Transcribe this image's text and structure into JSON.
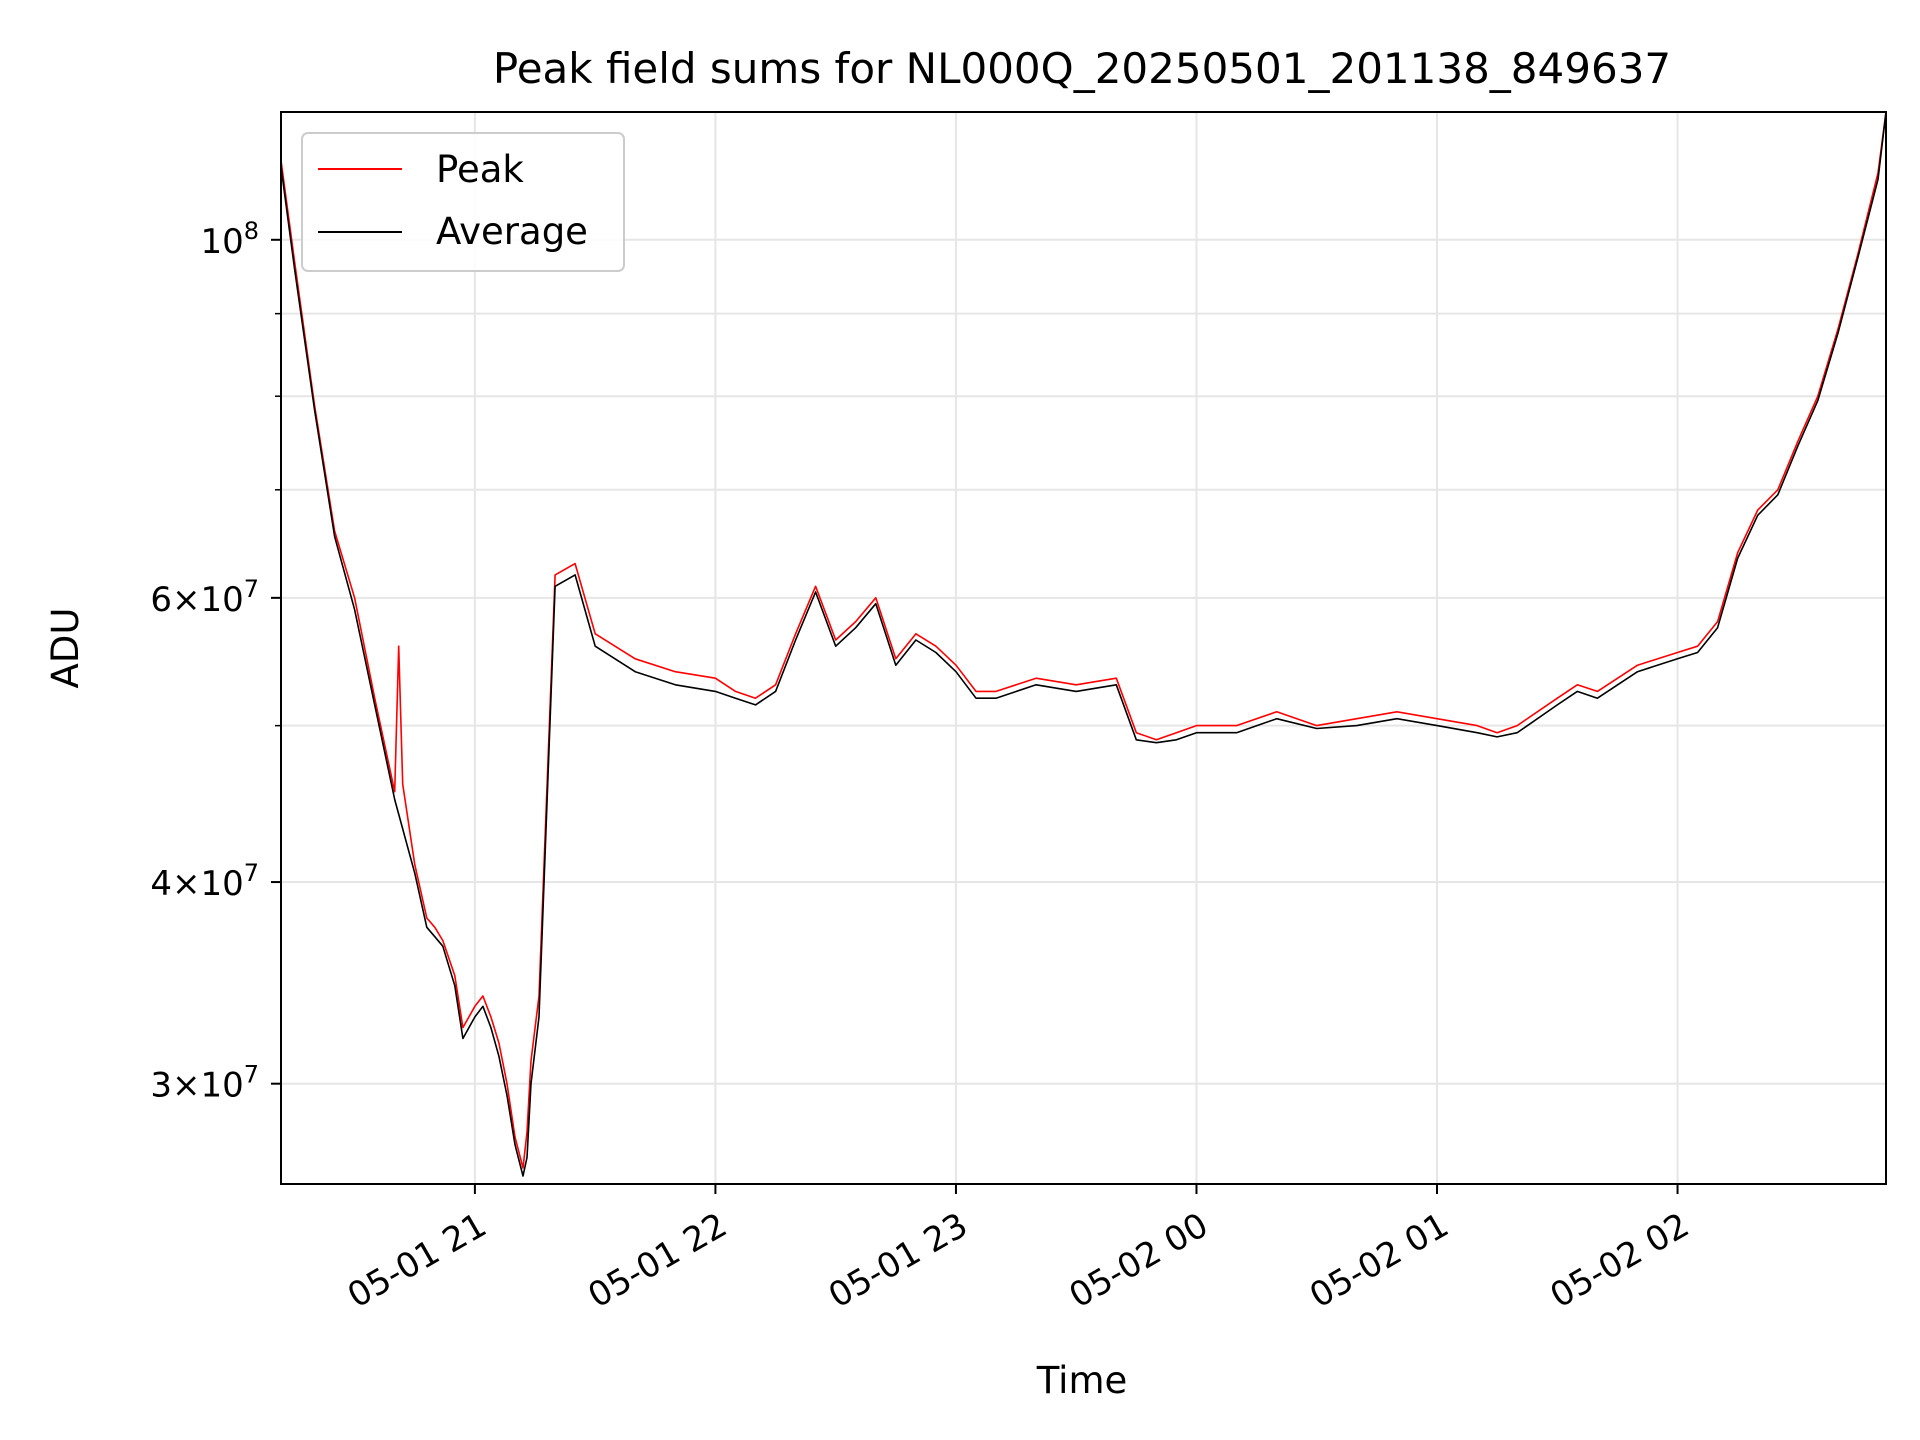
{
  "chart_data": {
    "type": "line",
    "title": "Peak field sums for NL000Q_20250501_201138_849637",
    "xlabel": "Time",
    "ylabel": "ADU",
    "y_scale": "log",
    "grid": true,
    "legend_position": "upper-left",
    "xlim": [
      "2025-05-01 20:11:38",
      "2025-05-02 02:52:00"
    ],
    "ylim": [
      26000000,
      120000000
    ],
    "x_ticks": [
      "05-01 21",
      "05-01 22",
      "05-01 23",
      "05-02 00",
      "05-02 01",
      "05-02 02"
    ],
    "x_tick_values": [
      "2025-05-01 21:00",
      "2025-05-01 22:00",
      "2025-05-01 23:00",
      "2025-05-02 00:00",
      "2025-05-02 01:00",
      "2025-05-02 02:00"
    ],
    "y_ticks": [
      {
        "value": 30000000,
        "mantissa": "3",
        "exponent": "7"
      },
      {
        "value": 40000000,
        "mantissa": "4",
        "exponent": "7"
      },
      {
        "value": 60000000,
        "mantissa": "6",
        "exponent": "7"
      },
      {
        "value": 100000000,
        "mantissa": "",
        "exponent": "8"
      }
    ],
    "y_minor_ticks": [
      50000000,
      70000000,
      80000000,
      90000000
    ],
    "series": [
      {
        "name": "Peak",
        "color": "#ff0000",
        "x": [
          "2025-05-01 20:11:38",
          "2025-05-01 20:15",
          "2025-05-01 20:20",
          "2025-05-01 20:25",
          "2025-05-01 20:30",
          "2025-05-01 20:35",
          "2025-05-01 20:40",
          "2025-05-01 20:41",
          "2025-05-01 20:42",
          "2025-05-01 20:45",
          "2025-05-01 20:48",
          "2025-05-01 20:50",
          "2025-05-01 20:52",
          "2025-05-01 20:55",
          "2025-05-01 20:57",
          "2025-05-01 21:00",
          "2025-05-01 21:02",
          "2025-05-01 21:04",
          "2025-05-01 21:06",
          "2025-05-01 21:08",
          "2025-05-01 21:10",
          "2025-05-01 21:12",
          "2025-05-01 21:13",
          "2025-05-01 21:14",
          "2025-05-01 21:16",
          "2025-05-01 21:20",
          "2025-05-01 21:25",
          "2025-05-01 21:30",
          "2025-05-01 21:40",
          "2025-05-01 21:50",
          "2025-05-01 22:00",
          "2025-05-01 22:05",
          "2025-05-01 22:10",
          "2025-05-01 22:15",
          "2025-05-01 22:20",
          "2025-05-01 22:25",
          "2025-05-01 22:30",
          "2025-05-01 22:35",
          "2025-05-01 22:40",
          "2025-05-01 22:45",
          "2025-05-01 22:50",
          "2025-05-01 22:55",
          "2025-05-01 23:00",
          "2025-05-01 23:05",
          "2025-05-01 23:10",
          "2025-05-01 23:20",
          "2025-05-01 23:30",
          "2025-05-01 23:40",
          "2025-05-01 23:45",
          "2025-05-01 23:50",
          "2025-05-01 23:55",
          "2025-05-02 00:00",
          "2025-05-02 00:10",
          "2025-05-02 00:20",
          "2025-05-02 00:30",
          "2025-05-02 00:40",
          "2025-05-02 00:50",
          "2025-05-02 01:00",
          "2025-05-02 01:10",
          "2025-05-02 01:15",
          "2025-05-02 01:20",
          "2025-05-02 01:30",
          "2025-05-02 01:35",
          "2025-05-02 01:40",
          "2025-05-02 01:50",
          "2025-05-02 02:00",
          "2025-05-02 02:05",
          "2025-05-02 02:10",
          "2025-05-02 02:15",
          "2025-05-02 02:20",
          "2025-05-02 02:25",
          "2025-05-02 02:30",
          "2025-05-02 02:35",
          "2025-05-02 02:40",
          "2025-05-02 02:45",
          "2025-05-02 02:50",
          "2025-05-02 02:52"
        ],
        "y": [
          112000000,
          97000000,
          79000000,
          66000000,
          60000000,
          52000000,
          45500000,
          56000000,
          46000000,
          41000000,
          38000000,
          37500000,
          36800000,
          35000000,
          32500000,
          33500000,
          34000000,
          33000000,
          31800000,
          30000000,
          27800000,
          26600000,
          28000000,
          31000000,
          34000000,
          62000000,
          63000000,
          57000000,
          55000000,
          54000000,
          53500000,
          52500000,
          52000000,
          53000000,
          57000000,
          61000000,
          56500000,
          58000000,
          60000000,
          55000000,
          57000000,
          56000000,
          54500000,
          52500000,
          52500000,
          53500000,
          53000000,
          53500000,
          49500000,
          49000000,
          49500000,
          50000000,
          50000000,
          51000000,
          50000000,
          50500000,
          51000000,
          50500000,
          50000000,
          49500000,
          50000000,
          52000000,
          53000000,
          52500000,
          54500000,
          55500000,
          56000000,
          58000000,
          64000000,
          68000000,
          70000000,
          75000000,
          80000000,
          88000000,
          98000000,
          110000000,
          120000000
        ]
      },
      {
        "name": "Average",
        "color": "#000000",
        "x": [
          "2025-05-01 20:11:38",
          "2025-05-01 20:15",
          "2025-05-01 20:20",
          "2025-05-01 20:25",
          "2025-05-01 20:30",
          "2025-05-01 20:35",
          "2025-05-01 20:40",
          "2025-05-01 20:45",
          "2025-05-01 20:48",
          "2025-05-01 20:50",
          "2025-05-01 20:52",
          "2025-05-01 20:55",
          "2025-05-01 20:57",
          "2025-05-01 21:00",
          "2025-05-01 21:02",
          "2025-05-01 21:04",
          "2025-05-01 21:06",
          "2025-05-01 21:08",
          "2025-05-01 21:10",
          "2025-05-01 21:12",
          "2025-05-01 21:13",
          "2025-05-01 21:14",
          "2025-05-01 21:16",
          "2025-05-01 21:20",
          "2025-05-01 21:25",
          "2025-05-01 21:30",
          "2025-05-01 21:40",
          "2025-05-01 21:50",
          "2025-05-01 22:00",
          "2025-05-01 22:05",
          "2025-05-01 22:10",
          "2025-05-01 22:15",
          "2025-05-01 22:20",
          "2025-05-01 22:25",
          "2025-05-01 22:30",
          "2025-05-01 22:35",
          "2025-05-01 22:40",
          "2025-05-01 22:45",
          "2025-05-01 22:50",
          "2025-05-01 22:55",
          "2025-05-01 23:00",
          "2025-05-01 23:05",
          "2025-05-01 23:10",
          "2025-05-01 23:20",
          "2025-05-01 23:30",
          "2025-05-01 23:40",
          "2025-05-01 23:45",
          "2025-05-01 23:50",
          "2025-05-01 23:55",
          "2025-05-02 00:00",
          "2025-05-02 00:10",
          "2025-05-02 00:20",
          "2025-05-02 00:30",
          "2025-05-02 00:40",
          "2025-05-02 00:50",
          "2025-05-02 01:00",
          "2025-05-02 01:10",
          "2025-05-02 01:15",
          "2025-05-02 01:20",
          "2025-05-02 01:30",
          "2025-05-02 01:35",
          "2025-05-02 01:40",
          "2025-05-02 01:50",
          "2025-05-02 02:00",
          "2025-05-02 02:05",
          "2025-05-02 02:10",
          "2025-05-02 02:15",
          "2025-05-02 02:20",
          "2025-05-02 02:25",
          "2025-05-02 02:30",
          "2025-05-02 02:35",
          "2025-05-02 02:40",
          "2025-05-02 02:45",
          "2025-05-02 02:50",
          "2025-05-02 02:52"
        ],
        "y": [
          111000000,
          96000000,
          78500000,
          65500000,
          59000000,
          51500000,
          45000000,
          40500000,
          37500000,
          37000000,
          36500000,
          34500000,
          32000000,
          33000000,
          33500000,
          32500000,
          31200000,
          29500000,
          27500000,
          26300000,
          27000000,
          30000000,
          33000000,
          61000000,
          62000000,
          56000000,
          54000000,
          53000000,
          52500000,
          52000000,
          51500000,
          52500000,
          56500000,
          60500000,
          56000000,
          57500000,
          59500000,
          54500000,
          56500000,
          55500000,
          54000000,
          52000000,
          52000000,
          53000000,
          52500000,
          53000000,
          49000000,
          48800000,
          49000000,
          49500000,
          49500000,
          50500000,
          49800000,
          50000000,
          50500000,
          50000000,
          49500000,
          49200000,
          49500000,
          51500000,
          52500000,
          52000000,
          54000000,
          55000000,
          55500000,
          57500000,
          63500000,
          67500000,
          69500000,
          74500000,
          79500000,
          87500000,
          97500000,
          109000000,
          120000000
        ]
      }
    ]
  }
}
